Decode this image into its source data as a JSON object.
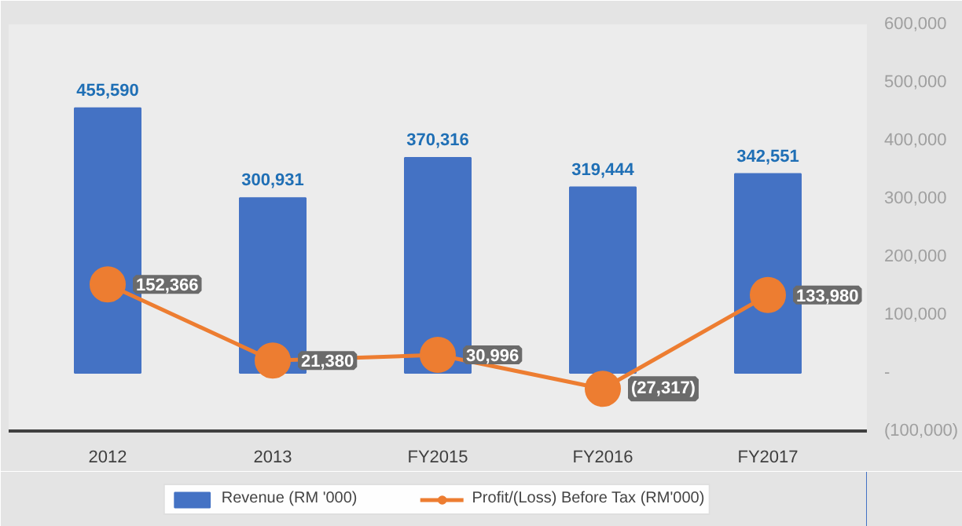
{
  "chart_data": {
    "type": "bar",
    "categories": [
      "2012",
      "2013",
      "FY2015",
      "FY2016",
      "FY2017"
    ],
    "series": [
      {
        "name": "Revenue (RM '000)",
        "axis": "y2",
        "color": "#4472c4",
        "values": [
          455590,
          300931,
          370316,
          319444,
          342551
        ],
        "value_labels": [
          "455,590",
          "300,931",
          "370,316",
          "319,444",
          "342,551"
        ]
      },
      {
        "name": "Profit/(Loss) Before Tax (RM'000)",
        "type": "line",
        "axis": "y2",
        "color": "#ed7d31",
        "marker": "circle",
        "values": [
          152366,
          21380,
          30996,
          -27317,
          133980
        ],
        "value_labels": [
          "152,366",
          "21,380",
          "30,996",
          "(27,317)",
          "133,980"
        ]
      }
    ],
    "y2lim": [
      -100000,
      600000
    ],
    "y2ticks": [
      {
        "value": -100000,
        "label": "(100,000)"
      },
      {
        "value": 0,
        "label": "-"
      },
      {
        "value": 100000,
        "label": "100,000"
      },
      {
        "value": 200000,
        "label": "200,000"
      },
      {
        "value": 300000,
        "label": "300,000"
      },
      {
        "value": 400000,
        "label": "400,000"
      },
      {
        "value": 500000,
        "label": "500,000"
      },
      {
        "value": 600000,
        "label": "600,000"
      }
    ],
    "grid": false,
    "legend": "bottom"
  }
}
